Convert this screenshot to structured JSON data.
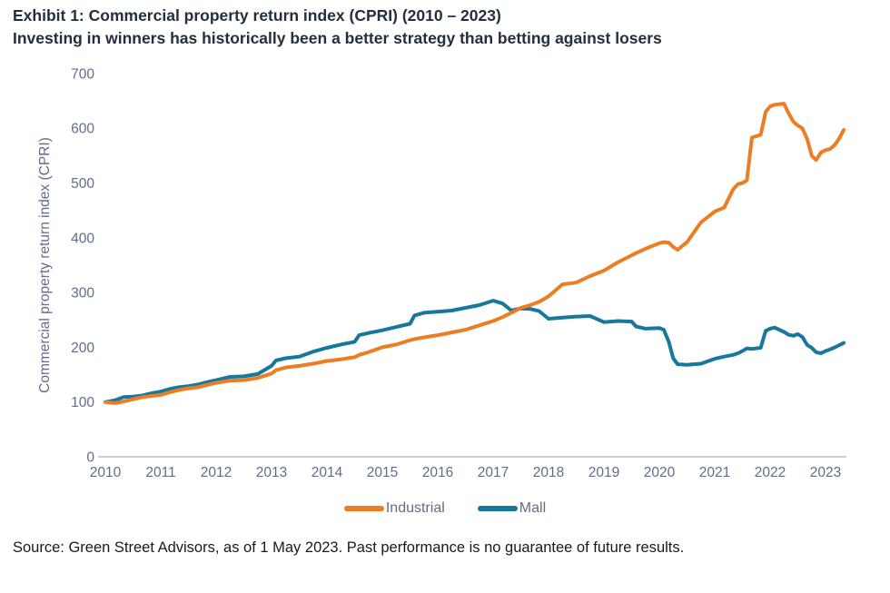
{
  "header": {
    "title": "Exhibit 1: Commercial property return index (CPRI) (2010 – 2023)",
    "subtitle": "Investing in winners has historically been a better strategy than betting against losers"
  },
  "chart_data": {
    "type": "line",
    "title": "Exhibit 1: Commercial property return index (CPRI) (2010 – 2023)",
    "subtitle": "Investing in winners has historically been a better strategy than betting against losers",
    "ylabel": "Commercial property return index (CPRI)",
    "xlabel": "",
    "ylim": [
      0,
      700
    ],
    "xlim": [
      2010,
      2023.5
    ],
    "yticks": [
      0,
      100,
      200,
      300,
      400,
      500,
      600,
      700
    ],
    "xticks": [
      2010,
      2011,
      2012,
      2013,
      2014,
      2015,
      2016,
      2017,
      2018,
      2019,
      2020,
      2021,
      2022,
      2023
    ],
    "grid": false,
    "legend_position": "bottom-center",
    "x": [
      2010.0,
      2010.17,
      2010.33,
      2010.5,
      2010.67,
      2010.83,
      2011.0,
      2011.17,
      2011.33,
      2011.5,
      2011.67,
      2011.83,
      2012.0,
      2012.25,
      2012.5,
      2012.75,
      2013.0,
      2013.08,
      2013.25,
      2013.5,
      2013.75,
      2014.0,
      2014.25,
      2014.5,
      2014.58,
      2014.75,
      2015.0,
      2015.25,
      2015.5,
      2015.58,
      2015.75,
      2016.0,
      2016.25,
      2016.5,
      2016.75,
      2017.0,
      2017.17,
      2017.33,
      2017.5,
      2017.67,
      2017.83,
      2018.0,
      2018.25,
      2018.5,
      2018.75,
      2019.0,
      2019.25,
      2019.5,
      2019.58,
      2019.75,
      2020.0,
      2020.08,
      2020.17,
      2020.25,
      2020.33,
      2020.5,
      2020.75,
      2021.0,
      2021.17,
      2021.33,
      2021.42,
      2021.5,
      2021.58,
      2021.67,
      2021.83,
      2021.92,
      2022.0,
      2022.08,
      2022.25,
      2022.33,
      2022.42,
      2022.5,
      2022.58,
      2022.67,
      2022.75,
      2022.83,
      2022.92,
      2023.0,
      2023.08,
      2023.17,
      2023.25,
      2023.33
    ],
    "series": [
      {
        "name": "Industrial",
        "color": "#ED7D23",
        "values": [
          100,
          98,
          101,
          105,
          109,
          111,
          113,
          118,
          122,
          125,
          127,
          131,
          135,
          139,
          140,
          144,
          152,
          158,
          163,
          166,
          170,
          175,
          178,
          182,
          186,
          191,
          200,
          205,
          213,
          215,
          218,
          222,
          227,
          232,
          240,
          248,
          255,
          263,
          272,
          277,
          283,
          293,
          315,
          318,
          330,
          340,
          355,
          368,
          372,
          380,
          390,
          392,
          391,
          383,
          378,
          392,
          428,
          448,
          455,
          488,
          498,
          500,
          505,
          583,
          588,
          630,
          640,
          643,
          645,
          628,
          612,
          605,
          600,
          580,
          550,
          542,
          556,
          560,
          562,
          570,
          582,
          597
        ]
      },
      {
        "name": "Mall",
        "color": "#17789B",
        "values": [
          100,
          103,
          109,
          110,
          112,
          116,
          119,
          124,
          127,
          129,
          132,
          136,
          140,
          146,
          147,
          151,
          166,
          176,
          180,
          183,
          192,
          199,
          205,
          210,
          222,
          226,
          231,
          237,
          243,
          258,
          263,
          265,
          267,
          272,
          277,
          285,
          280,
          267,
          271,
          270,
          266,
          252,
          254,
          256,
          257,
          246,
          248,
          247,
          238,
          234,
          235,
          232,
          210,
          180,
          169,
          168,
          170,
          179,
          183,
          186,
          189,
          193,
          198,
          197,
          199,
          230,
          234,
          236,
          228,
          223,
          221,
          224,
          219,
          204,
          199,
          191,
          189,
          193,
          196,
          200,
          204,
          208
        ]
      }
    ]
  },
  "legend": {
    "items": [
      "Industrial",
      "Mall"
    ]
  },
  "footer": {
    "source": "Source: Green Street Advisors, as of 1 May 2023. Past performance is no guarantee of future results."
  },
  "colors": {
    "title_text": "#232F3E",
    "axis_labels": "#5F6E87",
    "axis_line": "#C9CED8",
    "source_text": "#1A1A1A",
    "industrial": "#ED7D23",
    "mall": "#17789B"
  }
}
